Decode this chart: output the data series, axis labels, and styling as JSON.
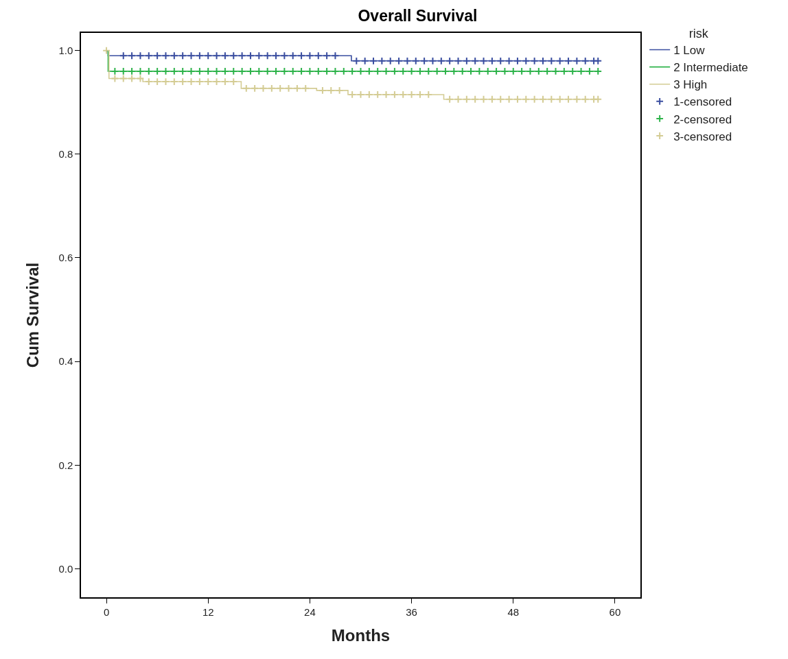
{
  "chart_data": {
    "type": "step",
    "title": "Overall Survival",
    "xlabel": "Months",
    "ylabel": "Cum Survival",
    "legend_title": "risk",
    "legend": "right",
    "grid": false,
    "xlim": [
      -3,
      63
    ],
    "xticks": [
      0,
      12,
      24,
      36,
      48,
      60
    ],
    "ylim": [
      -0.055,
      1.034
    ],
    "yticks": [
      {
        "value": 0,
        "label": "0.0"
      },
      {
        "value": 0.2,
        "label": "0.2"
      },
      {
        "value": 0.4,
        "label": "0.4"
      },
      {
        "value": 0.6,
        "label": "0.6"
      },
      {
        "value": 0.8,
        "label": "0.8"
      },
      {
        "value": 1,
        "label": "1.0"
      }
    ],
    "series": [
      {
        "name": "1 Low",
        "type": "step",
        "marker": "none",
        "color": "#3a4ea0",
        "x": [
          0,
          0.2,
          28.9,
          58.1
        ],
        "values": [
          1,
          0.99,
          0.98,
          0.98
        ]
      },
      {
        "name": "2 Intermediate",
        "type": "step",
        "marker": "none",
        "color": "#2db34a",
        "x": [
          0,
          0.2,
          58.1
        ],
        "values": [
          1,
          0.96,
          0.96
        ]
      },
      {
        "name": "3 High",
        "type": "step",
        "marker": "none",
        "color": "#d4cc94",
        "x": [
          0,
          0.3,
          4.3,
          15.9,
          24.8,
          28.5,
          39.8,
          58.1
        ],
        "values": [
          1,
          0.946,
          0.94,
          0.927,
          0.923,
          0.915,
          0.906,
          0.906
        ]
      },
      {
        "name": "1-censored",
        "type": "scatter",
        "marker": "cross",
        "color": "#3a4ea0",
        "x": [
          2,
          3,
          4,
          5,
          6,
          7,
          8,
          9,
          10,
          11,
          12,
          13,
          14,
          15,
          16,
          17,
          18,
          19,
          20,
          21,
          22,
          23,
          24,
          25,
          26,
          27,
          29.5,
          30.5,
          31.5,
          32.5,
          33.5,
          34.5,
          35.5,
          36.5,
          37.5,
          38.5,
          39.5,
          40.5,
          41.5,
          42.5,
          43.5,
          44.5,
          45.5,
          46.5,
          47.5,
          48.5,
          49.5,
          50.5,
          51.5,
          52.5,
          53.5,
          54.5,
          55.5,
          56.5,
          57.5,
          58
        ],
        "values": [
          0.99,
          0.99,
          0.99,
          0.99,
          0.99,
          0.99,
          0.99,
          0.99,
          0.99,
          0.99,
          0.99,
          0.99,
          0.99,
          0.99,
          0.99,
          0.99,
          0.99,
          0.99,
          0.99,
          0.99,
          0.99,
          0.99,
          0.99,
          0.99,
          0.99,
          0.99,
          0.98,
          0.98,
          0.98,
          0.98,
          0.98,
          0.98,
          0.98,
          0.98,
          0.98,
          0.98,
          0.98,
          0.98,
          0.98,
          0.98,
          0.98,
          0.98,
          0.98,
          0.98,
          0.98,
          0.98,
          0.98,
          0.98,
          0.98,
          0.98,
          0.98,
          0.98,
          0.98,
          0.98,
          0.98,
          0.98
        ]
      },
      {
        "name": "2-censored",
        "type": "scatter",
        "marker": "cross",
        "color": "#2db34a",
        "x": [
          1,
          2,
          3,
          4,
          5,
          6,
          7,
          8,
          9,
          10,
          11,
          12,
          13,
          14,
          15,
          16,
          17,
          18,
          19,
          20,
          21,
          22,
          23,
          24,
          25,
          26,
          27,
          28,
          29,
          30,
          31,
          32,
          33,
          34,
          35,
          36,
          37,
          38,
          39,
          40,
          41,
          42,
          43,
          44,
          45,
          46,
          47,
          48,
          49,
          50,
          51,
          52,
          53,
          54,
          55,
          56,
          57,
          58
        ],
        "values": [
          0.96,
          0.96,
          0.96,
          0.96,
          0.96,
          0.96,
          0.96,
          0.96,
          0.96,
          0.96,
          0.96,
          0.96,
          0.96,
          0.96,
          0.96,
          0.96,
          0.96,
          0.96,
          0.96,
          0.96,
          0.96,
          0.96,
          0.96,
          0.96,
          0.96,
          0.96,
          0.96,
          0.96,
          0.96,
          0.96,
          0.96,
          0.96,
          0.96,
          0.96,
          0.96,
          0.96,
          0.96,
          0.96,
          0.96,
          0.96,
          0.96,
          0.96,
          0.96,
          0.96,
          0.96,
          0.96,
          0.96,
          0.96,
          0.96,
          0.96,
          0.96,
          0.96,
          0.96,
          0.96,
          0.96,
          0.96,
          0.96,
          0.96
        ]
      },
      {
        "name": "3-censored",
        "type": "scatter",
        "marker": "cross",
        "color": "#d4cc94",
        "x": [
          0,
          1,
          2,
          3,
          4,
          5,
          6,
          7,
          8,
          9,
          10,
          11,
          12,
          13,
          14,
          15,
          16.5,
          17.5,
          18.5,
          19.5,
          20.5,
          21.5,
          22.5,
          23.5,
          25.5,
          26.5,
          27.5,
          29,
          30,
          31,
          32,
          33,
          34,
          35,
          36,
          37,
          38,
          40.5,
          41.5,
          42.5,
          43.5,
          44.5,
          45.5,
          46.5,
          47.5,
          48.5,
          49.5,
          50.5,
          51.5,
          52.5,
          53.5,
          54.5,
          55.5,
          56.5,
          57.5,
          58
        ],
        "values": [
          1,
          0.946,
          0.946,
          0.946,
          0.946,
          0.94,
          0.94,
          0.94,
          0.94,
          0.94,
          0.94,
          0.94,
          0.94,
          0.94,
          0.94,
          0.94,
          0.927,
          0.927,
          0.927,
          0.927,
          0.927,
          0.927,
          0.927,
          0.927,
          0.923,
          0.923,
          0.923,
          0.915,
          0.915,
          0.915,
          0.915,
          0.915,
          0.915,
          0.915,
          0.915,
          0.915,
          0.915,
          0.906,
          0.906,
          0.906,
          0.906,
          0.906,
          0.906,
          0.906,
          0.906,
          0.906,
          0.906,
          0.906,
          0.906,
          0.906,
          0.906,
          0.906,
          0.906,
          0.906,
          0.906,
          0.906
        ]
      }
    ]
  }
}
